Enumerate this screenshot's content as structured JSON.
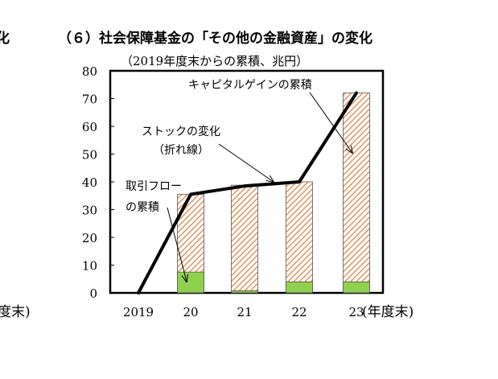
{
  "left_cut": {
    "title_char": "化",
    "unit_char": "度末)"
  },
  "chart_data": {
    "type": "bar",
    "title": "（６）社会保障基金の「その他の金融資産」の変化",
    "subtitle": "（2019年度末からの累積、兆円）",
    "x_unit_label": "(年度末)",
    "categories": [
      "2019",
      "20",
      "21",
      "22",
      "23"
    ],
    "ylim": [
      0,
      80
    ],
    "yticks": [
      "0",
      "10",
      "20",
      "30",
      "40",
      "50",
      "60",
      "70",
      "80"
    ],
    "grid": false,
    "series": [
      {
        "values": [
          0,
          7.5,
          0.8,
          4,
          4
        ],
        "color": "#8fd14f"
      },
      {
        "values": [
          0,
          28,
          38,
          36,
          68
        ],
        "color": "#e07b39"
      }
    ],
    "line": {
      "values": [
        0,
        35.5,
        38.5,
        40,
        72
      ],
      "color": "#000000"
    },
    "annotations": {
      "capital_gain": "キャピタルゲインの累積",
      "stock_line1": "ストックの変化",
      "stock_line2": "（折れ線）",
      "flow_line1": "取引フロー",
      "flow_line2": "の累積"
    }
  }
}
